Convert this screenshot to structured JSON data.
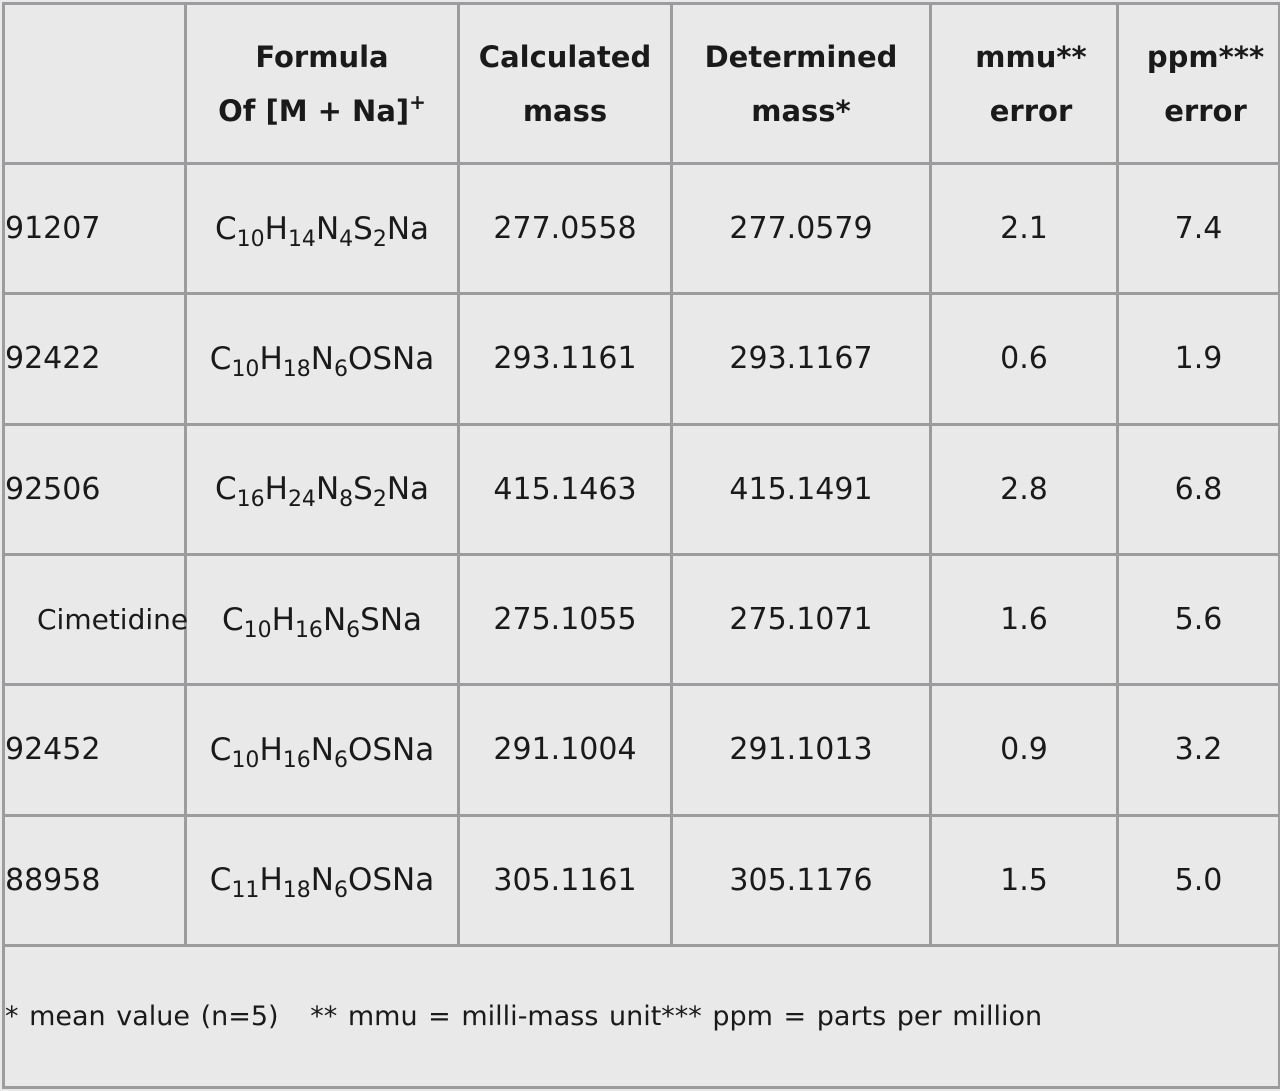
{
  "header": {
    "id_label": "",
    "formula_line1": "Formula",
    "formula_line2": "Of [M + Na]",
    "formula_sup": "+",
    "calc_line1": "Calculated",
    "calc_line2": "mass",
    "det_line1": "Determined",
    "det_line2": "mass*",
    "mmu_line1": "mmu**",
    "mmu_line2": "error",
    "ppm_line1": "ppm***",
    "ppm_line2": "error"
  },
  "rows": [
    {
      "id": "91207",
      "formula": [
        [
          "C",
          ""
        ],
        [
          "10",
          "sub"
        ],
        [
          "H",
          ""
        ],
        [
          "14",
          "sub"
        ],
        [
          "N",
          ""
        ],
        [
          "4",
          "sub"
        ],
        [
          "S",
          ""
        ],
        [
          "2",
          "sub"
        ],
        [
          "Na",
          ""
        ]
      ],
      "calc": "277.0558",
      "det": "277.0579",
      "mmu": "2.1",
      "ppm": "7.4"
    },
    {
      "id": "92422",
      "formula": [
        [
          "C",
          ""
        ],
        [
          "10",
          "sub"
        ],
        [
          "H",
          ""
        ],
        [
          "18",
          "sub"
        ],
        [
          "N",
          ""
        ],
        [
          "6",
          "sub"
        ],
        [
          "OSNa",
          ""
        ]
      ],
      "calc": "293.1161",
      "det": "293.1167",
      "mmu": "0.6",
      "ppm": "1.9"
    },
    {
      "id": "92506",
      "formula": [
        [
          "C",
          ""
        ],
        [
          "16",
          "sub"
        ],
        [
          "H",
          ""
        ],
        [
          "24",
          "sub"
        ],
        [
          "N",
          ""
        ],
        [
          "8",
          "sub"
        ],
        [
          "S",
          ""
        ],
        [
          "2",
          "sub"
        ],
        [
          "Na",
          ""
        ]
      ],
      "calc": "415.1463",
      "det": "415.1491",
      "mmu": "2.8",
      "ppm": "6.8"
    },
    {
      "id": "Cimetidine",
      "formula": [
        [
          "C",
          ""
        ],
        [
          "10",
          "sub"
        ],
        [
          "H",
          ""
        ],
        [
          "16",
          "sub"
        ],
        [
          "N",
          ""
        ],
        [
          "6",
          "sub"
        ],
        [
          "SNa",
          ""
        ]
      ],
      "calc": "275.1055",
      "det": "275.1071",
      "mmu": "1.6",
      "ppm": "5.6"
    },
    {
      "id": "92452",
      "formula": [
        [
          "C",
          ""
        ],
        [
          "10",
          "sub"
        ],
        [
          "H",
          ""
        ],
        [
          "16",
          "sub"
        ],
        [
          "N",
          ""
        ],
        [
          "6",
          "sub"
        ],
        [
          "OSNa",
          ""
        ]
      ],
      "calc": "291.1004",
      "det": "291.1013",
      "mmu": "0.9",
      "ppm": "3.2"
    },
    {
      "id": "88958",
      "formula": [
        [
          "C",
          ""
        ],
        [
          "11",
          "sub"
        ],
        [
          "H",
          ""
        ],
        [
          "18",
          "sub"
        ],
        [
          "N",
          ""
        ],
        [
          "6",
          "sub"
        ],
        [
          "OSNa",
          ""
        ]
      ],
      "calc": "305.1161",
      "det": "305.1176",
      "mmu": "1.5",
      "ppm": "5.0"
    }
  ],
  "footnote": "* mean value (n=5)   ** mmu = milli-mass unit*** ppm = parts per million"
}
